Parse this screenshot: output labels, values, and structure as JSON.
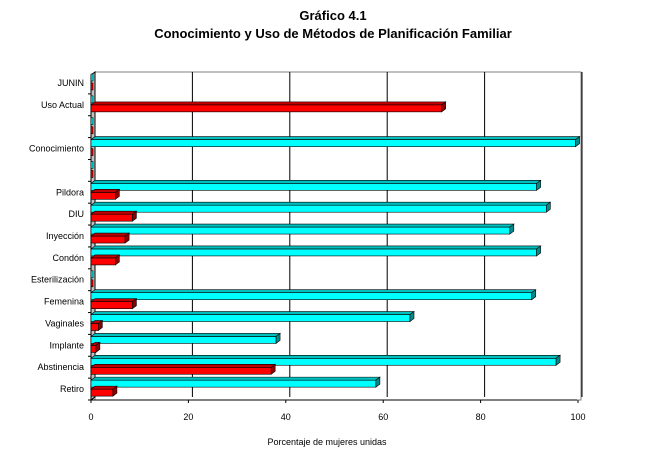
{
  "chart_data": {
    "type": "bar",
    "orientation": "horizontal",
    "title": "Gráfico 4.1",
    "subtitle": "Conocimiento y Uso de Métodos de Planificación Familiar",
    "xlabel": "Porcentaje de mujeres unidas",
    "ylabel": "",
    "xlim": [
      0,
      100
    ],
    "xticks": [
      0,
      20,
      40,
      60,
      80,
      100
    ],
    "grid": true,
    "legend": "none",
    "categories": [
      "JUNIN",
      "Uso Actual",
      "",
      "Conocimiento",
      "",
      "Pildora",
      "DIU",
      "Inyección",
      "Condón",
      "Esterilización",
      "Femenina",
      "Vaginales",
      "Implante",
      "Abstinencia",
      "Retiro"
    ],
    "series": [
      {
        "color": "#00FFFF",
        "values": [
          0,
          0,
          0,
          99.5,
          0,
          91.5,
          93.5,
          86,
          91.5,
          0,
          90.5,
          65.5,
          38,
          95.5,
          58.5
        ]
      },
      {
        "color": "#FF0000",
        "values": [
          0,
          72,
          0,
          0,
          0,
          5,
          8.5,
          7,
          5,
          0,
          8.5,
          1.5,
          1,
          37,
          4.5
        ]
      }
    ]
  }
}
